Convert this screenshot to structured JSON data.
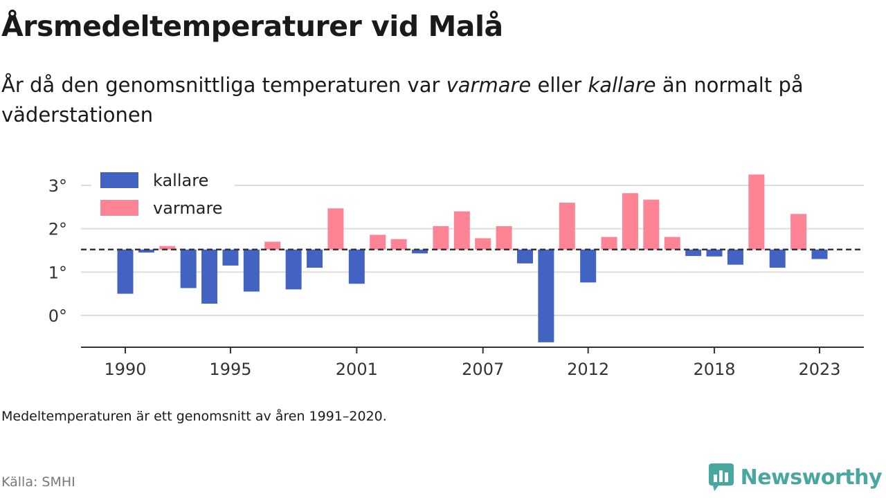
{
  "title": "Årsmedeltemperaturer vid Malå",
  "subtitle": {
    "part1": "År då den genomsnittliga temperaturen var ",
    "warm_word": "varmare",
    "part2": " eller ",
    "cold_word": "kallare",
    "part3": " än normalt på väderstationen"
  },
  "note": "Medeltemperaturen är ett genomsnitt av åren 1991–2020.",
  "source": "Källa: SMHI",
  "brand": {
    "name": "Newsworthy",
    "color": "#4aa7a0"
  },
  "chart_data": {
    "type": "bar",
    "x": [
      1990,
      1991,
      1992,
      1993,
      1994,
      1995,
      1996,
      1997,
      1998,
      1999,
      2000,
      2001,
      2002,
      2003,
      2004,
      2005,
      2006,
      2007,
      2008,
      2009,
      2010,
      2011,
      2012,
      2013,
      2014,
      2015,
      2016,
      2017,
      2018,
      2019,
      2020,
      2021,
      2022,
      2023
    ],
    "values": [
      0.5,
      1.45,
      1.6,
      0.63,
      0.27,
      1.15,
      0.55,
      1.7,
      0.6,
      1.1,
      2.47,
      0.73,
      1.86,
      1.76,
      1.43,
      2.06,
      2.4,
      1.78,
      2.06,
      1.2,
      -0.62,
      2.6,
      0.76,
      1.81,
      2.82,
      2.67,
      1.81,
      1.37,
      1.36,
      1.17,
      3.25,
      1.1,
      2.34,
      1.3
    ],
    "baseline": 1.52,
    "series": [
      {
        "name": "kallare",
        "color": "#4263c1"
      },
      {
        "name": "varmare",
        "color": "#fe8394"
      }
    ],
    "x_ticks": [
      1990,
      1995,
      2001,
      2007,
      2012,
      2018,
      2023
    ],
    "y_ticks": [
      0,
      1,
      2,
      3
    ],
    "y_tick_suffix": "°",
    "ylim": [
      -0.75,
      3.55
    ],
    "xlim": [
      1988.8,
      2025.2
    ],
    "legend_position": "top-left",
    "grid": true
  }
}
